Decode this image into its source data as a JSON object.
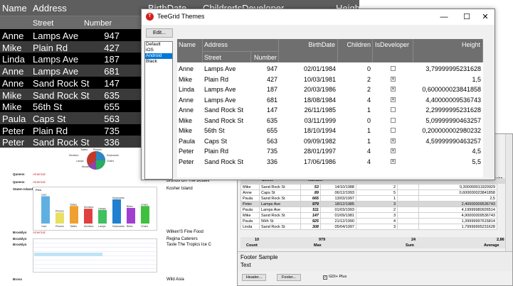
{
  "background_grid": {
    "headers": {
      "name": "Name",
      "address": "Address",
      "street": "Street",
      "number": "Number",
      "birthdate": "BirthDate",
      "children": "Children",
      "isdeveloper": "IsDeveloper",
      "height": "Height"
    },
    "rows": [
      {
        "name": "Anne",
        "street": "Lamps Ave",
        "number": "947"
      },
      {
        "name": "Mike",
        "street": "Plain Rd",
        "number": "427"
      },
      {
        "name": "Linda",
        "street": "Lamps Ave",
        "number": "187"
      },
      {
        "name": "Anne",
        "street": "Lamps Ave",
        "number": "681"
      },
      {
        "name": "Anne",
        "street": "Sand Rock St",
        "number": "147"
      },
      {
        "name": "Mike",
        "street": "Sand Rock St",
        "number": "635"
      },
      {
        "name": "Mike",
        "street": "56th St",
        "number": "655"
      },
      {
        "name": "Paula",
        "street": "Caps St",
        "number": "563"
      },
      {
        "name": "Peter",
        "street": "Plain Rd",
        "number": "735"
      },
      {
        "name": "Peter",
        "street": "Sand Rock St",
        "number": "336"
      }
    ]
  },
  "dialog": {
    "title": "TeeGrid Themes",
    "edit_button": "Edit...",
    "themes": [
      "Default",
      "iOS",
      "Android",
      "Black"
    ],
    "selected_theme": 2,
    "headers": {
      "name": "Name",
      "address": "Address",
      "street": "Street",
      "number": "Number",
      "birthdate": "BirthDate",
      "children": "Children",
      "isdeveloper": "IsDeveloper",
      "height": "Height"
    },
    "rows": [
      {
        "name": "Anne",
        "street": "Lamps Ave",
        "number": "947",
        "birth": "02/01/1984",
        "children": "0",
        "dev": false,
        "height": "3,79999995231628"
      },
      {
        "name": "Mike",
        "street": "Plain Rd",
        "number": "427",
        "birth": "10/03/1981",
        "children": "2",
        "dev": true,
        "height": "1,5"
      },
      {
        "name": "Linda",
        "street": "Lamps Ave",
        "number": "187",
        "birth": "20/03/1986",
        "children": "2",
        "dev": true,
        "height": "0,600000023841858"
      },
      {
        "name": "Anne",
        "street": "Lamps Ave",
        "number": "681",
        "birth": "18/08/1984",
        "children": "4",
        "dev": true,
        "height": "4,40000009536743"
      },
      {
        "name": "Anne",
        "street": "Sand Rock St",
        "number": "147",
        "birth": "26/11/1985",
        "children": "1",
        "dev": false,
        "height": "2,29999995231628"
      },
      {
        "name": "Mike",
        "street": "Sand Rock St",
        "number": "635",
        "birth": "03/11/1999",
        "children": "0",
        "dev": false,
        "height": "5,09999990463257"
      },
      {
        "name": "Mike",
        "street": "56th St",
        "number": "655",
        "birth": "18/10/1994",
        "children": "1",
        "dev": false,
        "height": "0,200000002980232"
      },
      {
        "name": "Paula",
        "street": "Caps St",
        "number": "563",
        "birth": "09/09/1982",
        "children": "1",
        "dev": true,
        "height": "4,59999990463257"
      },
      {
        "name": "Peter",
        "street": "Plain Rd",
        "number": "735",
        "birth": "28/01/1997",
        "children": "4",
        "dev": true,
        "height": "4,5"
      },
      {
        "name": "Peter",
        "street": "Sand Rock St",
        "number": "336",
        "birth": "17/06/1986",
        "children": "4",
        "dev": true,
        "height": "5,5"
      }
    ]
  },
  "report": {
    "labels": [
      "Queens",
      "Queens",
      "Staten Island",
      "Brooklyn",
      "Brooklyn",
      "Brooklyn",
      "Bronx"
    ],
    "red_labels": [
      "Americal",
      "Americal",
      "Americal"
    ],
    "right_texts": [
      "Brunos On The Boulev",
      "Kosher Island",
      "Wilken'S Fine Food",
      "Regina Caterers",
      "Taste The Tropics Ice C",
      "Wild Asia"
    ],
    "pie_labels": [
      "Tables",
      "Phones",
      "Monitors",
      "Lamps",
      "Keyboards",
      "Chairs",
      "Mouses"
    ],
    "bar_labels": [
      "Cars",
      "Phones",
      "Tables",
      "Monitors",
      "Lamps",
      "Keyboards",
      "Bikes",
      "Chairs"
    ],
    "bar_values": [
      70,
      28,
      45,
      38,
      35,
      62,
      40,
      45
    ],
    "bar_colors": [
      "#5fb0e0",
      "#e8e060",
      "#f0a030",
      "#e04040",
      "#40c060",
      "#2080d0",
      "#a040d0",
      "#40c040"
    ],
    "chart_title": "Pies"
  },
  "bottom_grid": {
    "header_right": "ight",
    "rows": [
      {
        "name": "Mike",
        "street": "Sand Rock St",
        "number": "53",
        "birth": "14/10/1988",
        "children": "2",
        "height": "0,300000011920929"
      },
      {
        "name": "Anne",
        "street": "Caps St",
        "number": "89",
        "birth": "06/12/1993",
        "children": "5",
        "height": "0,600000023841858"
      },
      {
        "name": "Paula",
        "street": "Sand Rock St",
        "number": "665",
        "birth": "13/03/1997",
        "children": "1",
        "height": "2,5"
      },
      {
        "name": "Peter",
        "street": "Lamps Ave",
        "number": "979",
        "birth": "18/12/1985",
        "children": "3",
        "height": "2,40000009536743"
      },
      {
        "name": "Paula",
        "street": "Lamps Ave",
        "number": "511",
        "birth": "01/03/1993",
        "children": "2",
        "height": "4,19999980926514"
      },
      {
        "name": "Mike",
        "street": "Sand Rock St",
        "number": "147",
        "birth": "01/09/1981",
        "children": "3",
        "height": "4,90000009536743"
      },
      {
        "name": "Paula",
        "street": "56th St",
        "number": "925",
        "birth": "21/12/1990",
        "children": "4",
        "height": "1,39999997615814"
      },
      {
        "name": "Linda",
        "street": "Sand Rock St",
        "number": "308",
        "birth": "05/04/1997",
        "children": "3",
        "height": "1,79999995231628"
      }
    ],
    "totals": {
      "count": "10",
      "max": "979",
      "sum": "24",
      "average": "2,86"
    },
    "footer_labels": {
      "count": "Count",
      "max": "Max",
      "sum": "Sum",
      "average": "Average"
    },
    "footer_text": "Footer Sample",
    "footer_text2": "Text",
    "buttons": {
      "header": "Header...",
      "footer": "Footer..."
    },
    "checkbox_label": "GDI+ Plus"
  }
}
